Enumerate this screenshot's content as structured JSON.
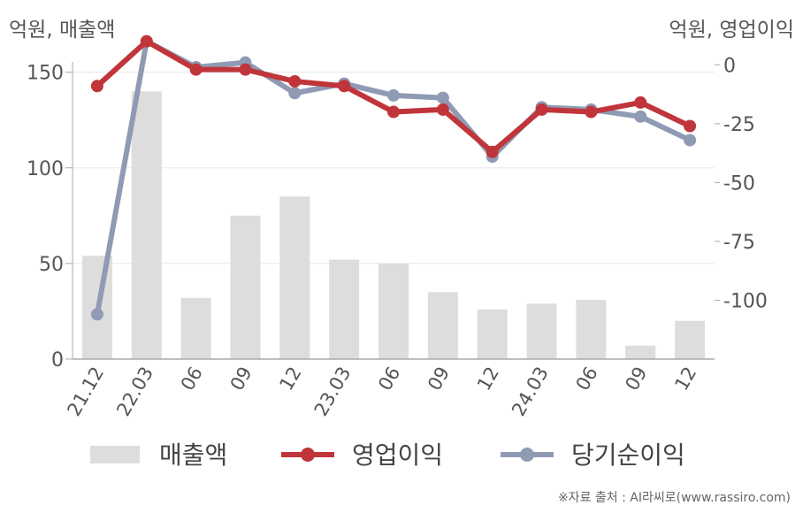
{
  "left_unit": "억원, 매출액",
  "right_unit": "억원, 영업이익",
  "source": "※자료 출처 : AI라씨로(www.rassiro.com)",
  "colors": {
    "bar": "#dddddd",
    "operating": "#c0353a",
    "net": "#8f9ab4",
    "grid": "#e8e8e8",
    "axis": "#aaaaaa"
  },
  "chart_data": {
    "type": "bar",
    "categories": [
      "21.12",
      "22.03",
      "06",
      "09",
      "12",
      "23.03",
      "06",
      "09",
      "12",
      "24.03",
      "06",
      "09",
      "12"
    ],
    "left_axis": {
      "ylim": [
        0,
        160
      ],
      "ticks": [
        0,
        50,
        100,
        150
      ],
      "tick_labels": [
        "0",
        "50",
        "100",
        "150"
      ]
    },
    "right_axis": {
      "ylim": [
        -125,
        5
      ],
      "ticks": [
        0,
        -25,
        -50,
        -75,
        -100
      ],
      "tick_labels": [
        "0",
        "-25",
        "-50",
        "-75",
        "-100"
      ]
    },
    "legend_position": "bottom",
    "grid": true,
    "series": [
      {
        "name": "매출액",
        "type": "bar",
        "axis": "left",
        "values": [
          54,
          140,
          32,
          75,
          85,
          52,
          50,
          35,
          26,
          29,
          31,
          7,
          20
        ]
      },
      {
        "name": "영업이익",
        "type": "line",
        "axis": "right",
        "values": [
          -9,
          10,
          -2,
          -2,
          -7,
          -9,
          -20,
          -19,
          -37,
          -19,
          -20,
          -16,
          -26
        ]
      },
      {
        "name": "당기순이익",
        "type": "line",
        "axis": "right",
        "values": [
          -106,
          10,
          -1,
          1,
          -12,
          -8,
          -13,
          -14,
          -39,
          -18,
          -19,
          -22,
          -32
        ]
      }
    ]
  }
}
